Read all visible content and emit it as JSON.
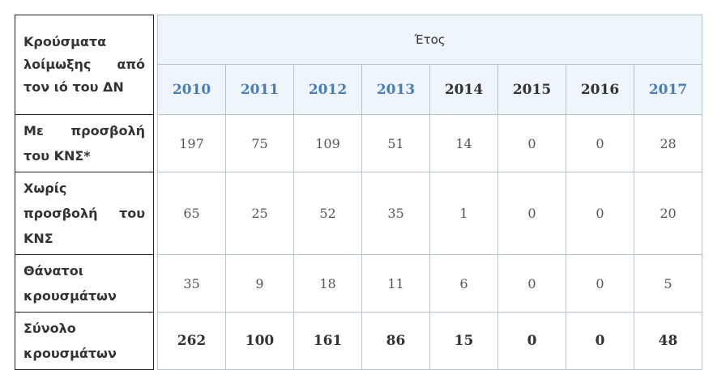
{
  "header": {
    "corner": "Κρούσματα λοίμωξης από τον ιό του ΔΝ",
    "group": "Έτος",
    "years": [
      2010,
      2011,
      2012,
      2013,
      2014,
      2015,
      2016,
      2017
    ]
  },
  "rows": [
    {
      "label": "Με προσβολή του ΚΝΣ*",
      "values": [
        197,
        75,
        109,
        51,
        14,
        0,
        0,
        28
      ]
    },
    {
      "label": "Χωρίς προσβολή του ΚΝΣ",
      "values": [
        65,
        25,
        52,
        35,
        1,
        0,
        0,
        20
      ]
    },
    {
      "label": "Θάνατοι κρουσμάτων",
      "values": [
        35,
        9,
        18,
        11,
        6,
        0,
        0,
        5
      ]
    },
    {
      "label": "Σύνολο κρουσμάτων",
      "values": [
        262,
        100,
        161,
        86,
        15,
        0,
        0,
        48
      ]
    }
  ]
}
